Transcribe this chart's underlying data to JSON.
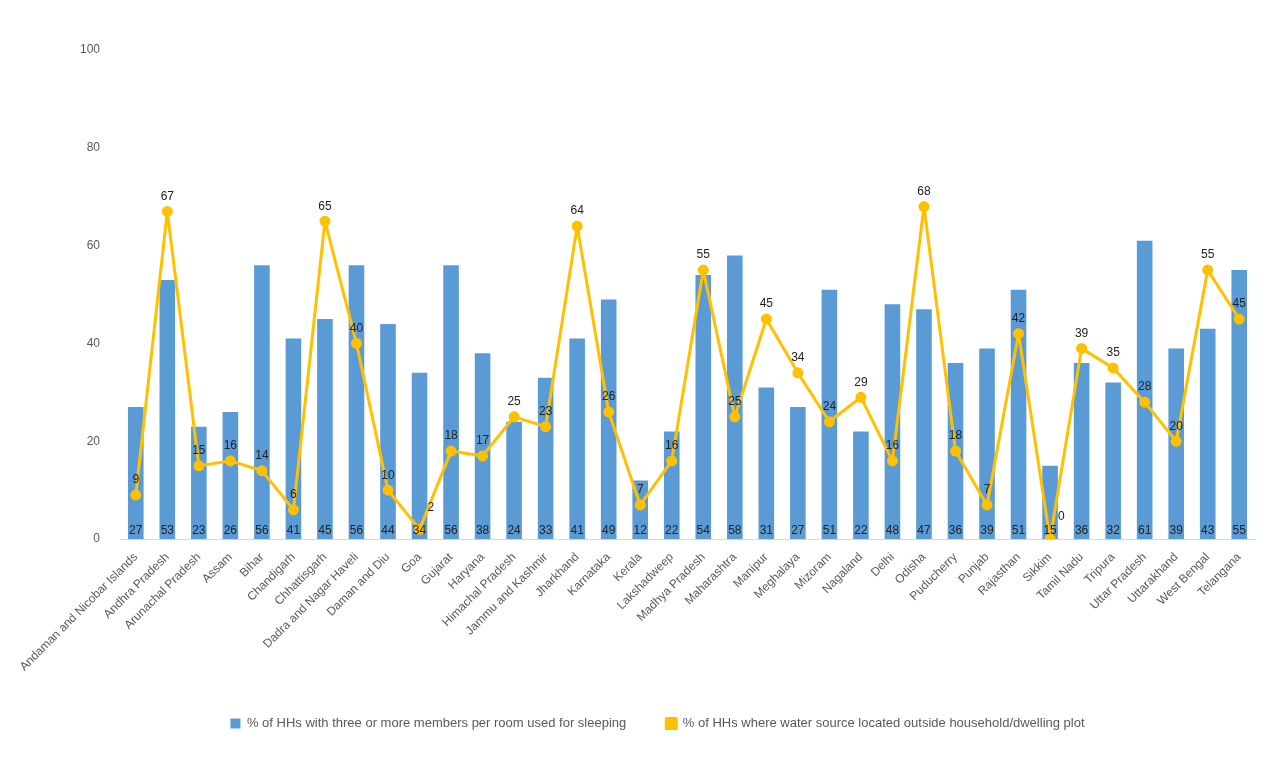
{
  "chart_data": {
    "type": "bar",
    "categories": [
      "Andaman and Nicobar Islands",
      "Andhra Pradesh",
      "Arunachal Pradesh",
      "Assam",
      "Bihar",
      "Chandigarh",
      "Chhattisgarh",
      "Dadra and Nagar Haveli",
      "Daman and Diu",
      "Goa",
      "Gujarat",
      "Haryana",
      "Himachal Pradesh",
      "Jammu and Kashmir",
      "Jharkhand",
      "Karnataka",
      "Kerala",
      "Lakshadweep",
      "Madhya Pradesh",
      "Maharashtra",
      "Manipur",
      "Meghalaya",
      "Mizoram",
      "Nagaland",
      "Delhi",
      "Odisha",
      "Puducherry",
      "Punjab",
      "Rajasthan",
      "Sikkim",
      "Tamil Nadu",
      "Tripura",
      "Uttar Pradesh",
      "Uttarakhand",
      "West Bengal",
      "Telangana"
    ],
    "series": [
      {
        "name": "% of HHs with three or more members per room used for sleeping",
        "color": "#5b9bd5",
        "values": [
          27,
          53,
          23,
          26,
          56,
          41,
          45,
          56,
          44,
          34,
          56,
          38,
          24,
          33,
          41,
          49,
          12,
          22,
          54,
          58,
          31,
          27,
          51,
          22,
          48,
          47,
          36,
          39,
          51,
          15,
          36,
          32,
          61,
          39,
          43,
          55
        ]
      },
      {
        "name": "% of HHs where water source located outside household/dwelling plot",
        "type": "line",
        "color": "#ffc000",
        "values": [
          9,
          67,
          15,
          16,
          14,
          6,
          65,
          40,
          10,
          2,
          18,
          17,
          25,
          23,
          64,
          26,
          7,
          16,
          55,
          25,
          45,
          34,
          24,
          29,
          16,
          68,
          18,
          7,
          42,
          0,
          39,
          35,
          28,
          20,
          55,
          45
        ]
      }
    ],
    "ylim": [
      0,
      100
    ],
    "yticks": [
      0,
      20,
      40,
      60,
      80,
      100
    ],
    "grid": false,
    "legend": "bottom",
    "marker": "circle",
    "line_style": "solid",
    "data_labels": true
  }
}
